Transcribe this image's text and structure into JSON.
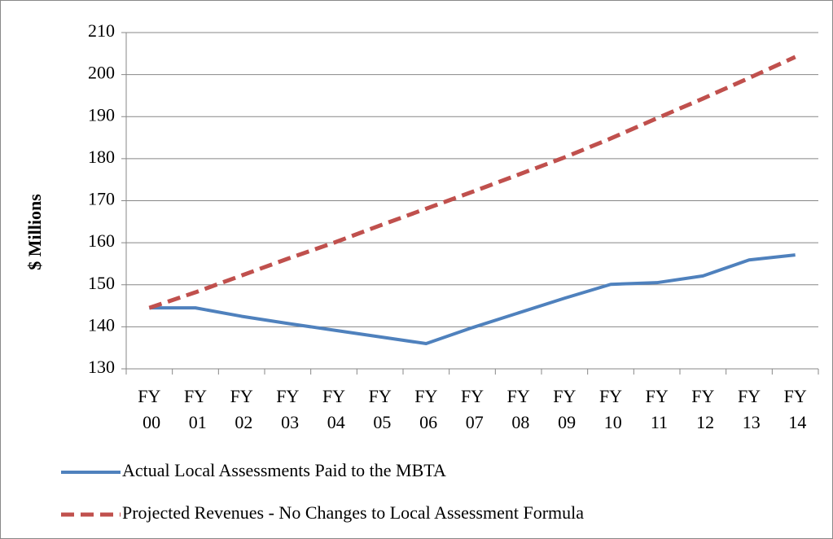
{
  "chart_data": {
    "type": "line",
    "y_label": "$ Millions",
    "categories": [
      "FY 00",
      "FY 01",
      "FY 02",
      "FY 03",
      "FY 04",
      "FY 05",
      "FY 06",
      "FY 07",
      "FY 08",
      "FY 09",
      "FY 10",
      "FY 11",
      "FY 12",
      "FY 13",
      "FY 14"
    ],
    "series": [
      {
        "name": "Actual Local Assessments Paid to the MBTA",
        "color": "#4f81bd",
        "dash": false,
        "values": [
          144.5,
          144.5,
          142.5,
          140.8,
          139.2,
          137.6,
          136,
          139.8,
          143.3,
          146.8,
          150.1,
          150.5,
          152.1,
          155.9,
          157.1
        ]
      },
      {
        "name": "Projected Revenues - No Changes to Local Assessment Formula",
        "color": "#c0504d",
        "dash": true,
        "values": [
          144.5,
          148.2,
          152.2,
          156.2,
          160,
          164.1,
          168.1,
          172.1,
          176.2,
          180.3,
          184.8,
          189.6,
          194.3,
          199.2,
          204.2
        ]
      }
    ],
    "ylim": [
      130,
      210
    ],
    "yticks": [
      130,
      140,
      150,
      160,
      170,
      180,
      190,
      200,
      210
    ],
    "grid": true,
    "legend": "bottom"
  }
}
